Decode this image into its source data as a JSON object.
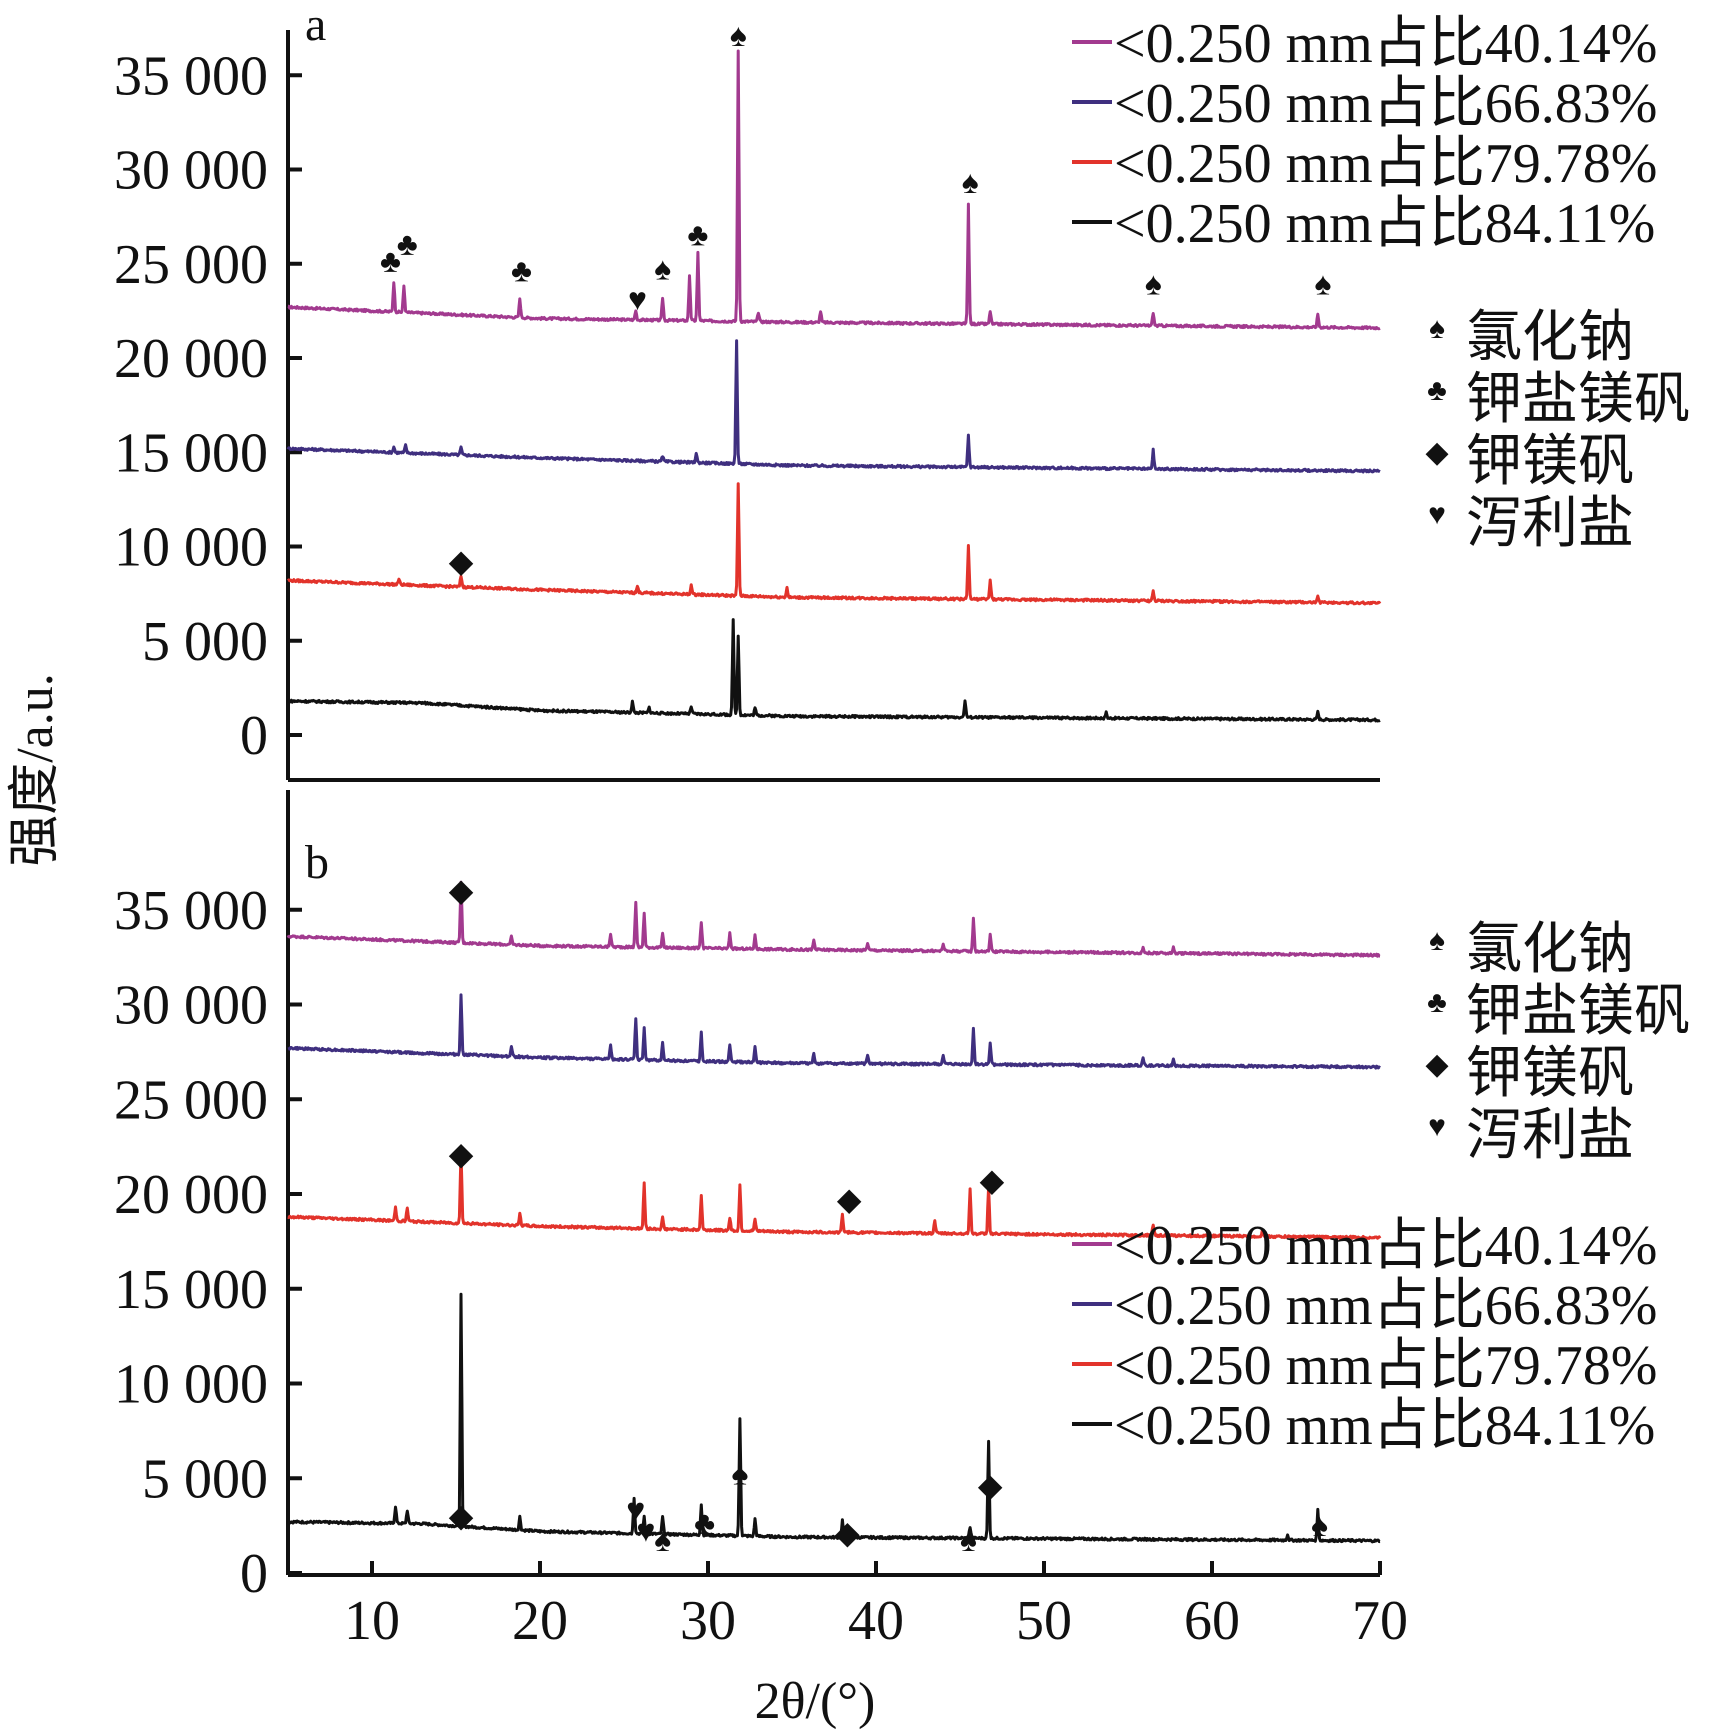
{
  "y_axis_title": "强度/a.u.",
  "x_axis_title": "2θ/(°)",
  "x_ticks": [
    "10",
    "20",
    "30",
    "40",
    "50",
    "60",
    "70"
  ],
  "y_ticks": [
    "0",
    "5 000",
    "10 000",
    "15 000",
    "20 000",
    "25 000",
    "30 000",
    "35 000"
  ],
  "marker_legend": [
    {
      "symbol": "♠",
      "label": "氯化钠"
    },
    {
      "symbol": "♣",
      "label": "钾盐镁矾"
    },
    {
      "symbol": "◆",
      "label": "钾镁矾"
    },
    {
      "symbol": "♥",
      "label": "泻利盐"
    }
  ],
  "colors": {
    "series_40": "#a23a8f",
    "series_66": "#3f2f7f",
    "series_79": "#e2332b",
    "series_84": "#111111",
    "axis": "#111111"
  },
  "chart_data": [
    {
      "type": "line",
      "panel_label": "a",
      "xlim": [
        5,
        70
      ],
      "ylim": [
        -2200,
        38500
      ],
      "xlabel": "2θ/(°)",
      "ylabel": "强度/a.u.",
      "legend_position": "top-right",
      "series": [
        {
          "name": "<0.250 mm占比40.14%",
          "color": "#a23a8f",
          "baseline": [
            [
              5,
              22700
            ],
            [
              20,
              22100
            ],
            [
              35,
              21900
            ],
            [
              70,
              21600
            ]
          ],
          "peaks": [
            [
              11.3,
              1600
            ],
            [
              11.9,
              1400
            ],
            [
              18.8,
              1000
            ],
            [
              25.7,
              500
            ],
            [
              27.3,
              1200
            ],
            [
              28.9,
              2400
            ],
            [
              29.4,
              3600
            ],
            [
              31.8,
              14300
            ],
            [
              33,
              500
            ],
            [
              36.7,
              600
            ],
            [
              45.5,
              6300
            ],
            [
              46.8,
              700
            ],
            [
              56.5,
              700
            ],
            [
              66.3,
              700
            ]
          ]
        },
        {
          "name": "<0.250 mm占比66.83%",
          "color": "#3f2f7f",
          "baseline": [
            [
              5,
              15200
            ],
            [
              20,
              14700
            ],
            [
              35,
              14300
            ],
            [
              70,
              14000
            ]
          ],
          "peaks": [
            [
              11.3,
              300
            ],
            [
              12,
              400
            ],
            [
              15.3,
              400
            ],
            [
              27.3,
              300
            ],
            [
              29.3,
              500
            ],
            [
              31.7,
              6500
            ],
            [
              45.5,
              1700
            ],
            [
              56.5,
              1000
            ]
          ]
        },
        {
          "name": "<0.250 mm占比79.78%",
          "color": "#e2332b",
          "baseline": [
            [
              5,
              8200
            ],
            [
              20,
              7700
            ],
            [
              35,
              7300
            ],
            [
              70,
              7000
            ]
          ],
          "peaks": [
            [
              11.6,
              300
            ],
            [
              15.3,
              600
            ],
            [
              25.8,
              400
            ],
            [
              29,
              500
            ],
            [
              31.8,
              5900
            ],
            [
              34.7,
              500
            ],
            [
              45.5,
              2900
            ],
            [
              46.8,
              1000
            ],
            [
              56.5,
              500
            ],
            [
              66.3,
              400
            ]
          ]
        },
        {
          "name": "<0.250 mm占比84.11%",
          "color": "#111111",
          "baseline": [
            [
              5,
              1800
            ],
            [
              13,
              1700
            ],
            [
              20,
              1300
            ],
            [
              35,
              1000
            ],
            [
              70,
              800
            ]
          ],
          "peaks": [
            [
              25.5,
              600
            ],
            [
              26.5,
              300
            ],
            [
              29,
              400
            ],
            [
              31.5,
              5000
            ],
            [
              31.8,
              4200
            ],
            [
              32.8,
              400
            ],
            [
              45.3,
              900
            ],
            [
              53.7,
              300
            ],
            [
              66.3,
              400
            ]
          ]
        }
      ],
      "annotations": [
        {
          "symbol": "♣",
          "x": 11.1,
          "y": 25300
        },
        {
          "symbol": "♣",
          "x": 12.1,
          "y": 26200
        },
        {
          "symbol": "♣",
          "x": 18.9,
          "y": 24800
        },
        {
          "symbol": "♥",
          "x": 25.8,
          "y": 23300
        },
        {
          "symbol": "♠",
          "x": 27.3,
          "y": 24900
        },
        {
          "symbol": "♣",
          "x": 29.4,
          "y": 26700
        },
        {
          "symbol": "♠",
          "x": 31.8,
          "y": 37300
        },
        {
          "symbol": "♠",
          "x": 45.6,
          "y": 29500
        },
        {
          "symbol": "♠",
          "x": 56.5,
          "y": 24100
        },
        {
          "symbol": "♠",
          "x": 66.6,
          "y": 24100
        },
        {
          "symbol": "◆",
          "x": 15.3,
          "y": 9400
        }
      ]
    },
    {
      "type": "line",
      "panel_label": "b",
      "xlim": [
        5,
        70
      ],
      "ylim": [
        0,
        40000
      ],
      "xlabel": "2θ/(°)",
      "ylabel": "强度/a.u.",
      "legend_position": "bottom-right",
      "series": [
        {
          "name": "<0.250 mm占比40.14%",
          "color": "#a23a8f",
          "baseline": [
            [
              5,
              33600
            ],
            [
              20,
              33100
            ],
            [
              35,
              32900
            ],
            [
              70,
              32600
            ]
          ],
          "peaks": [
            [
              15.3,
              3200
            ],
            [
              18.3,
              400
            ],
            [
              24.2,
              700
            ],
            [
              25.7,
              2400
            ],
            [
              26.2,
              1800
            ],
            [
              27.3,
              700
            ],
            [
              29.6,
              1400
            ],
            [
              31.3,
              800
            ],
            [
              32.8,
              700
            ],
            [
              36.3,
              500
            ],
            [
              39.5,
              400
            ],
            [
              44,
              400
            ],
            [
              45.8,
              1700
            ],
            [
              46.8,
              900
            ],
            [
              55.9,
              300
            ],
            [
              57.7,
              300
            ]
          ]
        },
        {
          "name": "<0.250 mm占比66.83%",
          "color": "#3f2f7f",
          "baseline": [
            [
              5,
              27700
            ],
            [
              20,
              27200
            ],
            [
              35,
              26900
            ],
            [
              70,
              26700
            ]
          ],
          "peaks": [
            [
              15.3,
              3100
            ],
            [
              18.3,
              500
            ],
            [
              24.2,
              700
            ],
            [
              25.7,
              2200
            ],
            [
              26.2,
              1700
            ],
            [
              27.3,
              900
            ],
            [
              29.6,
              1500
            ],
            [
              31.3,
              900
            ],
            [
              32.8,
              800
            ],
            [
              36.3,
              500
            ],
            [
              39.5,
              500
            ],
            [
              44,
              500
            ],
            [
              45.8,
              1900
            ],
            [
              46.8,
              1100
            ],
            [
              55.9,
              400
            ],
            [
              57.7,
              400
            ]
          ]
        },
        {
          "name": "<0.250 mm占比79.78%",
          "color": "#e2332b",
          "baseline": [
            [
              5,
              18800
            ],
            [
              20,
              18300
            ],
            [
              35,
              18000
            ],
            [
              70,
              17700
            ]
          ],
          "peaks": [
            [
              11.4,
              700
            ],
            [
              12.1,
              700
            ],
            [
              15.3,
              3800
            ],
            [
              18.8,
              600
            ],
            [
              26.2,
              2400
            ],
            [
              27.3,
              600
            ],
            [
              29.6,
              1800
            ],
            [
              31.3,
              700
            ],
            [
              31.9,
              2400
            ],
            [
              32.8,
              600
            ],
            [
              38,
              1000
            ],
            [
              43.5,
              700
            ],
            [
              45.6,
              2400
            ],
            [
              46.7,
              2500
            ],
            [
              56.5,
              600
            ],
            [
              63,
              300
            ]
          ]
        },
        {
          "name": "<0.250 mm占比84.11%",
          "color": "#111111",
          "baseline": [
            [
              5,
              2700
            ],
            [
              13,
              2600
            ],
            [
              20,
              2200
            ],
            [
              35,
              1900
            ],
            [
              70,
              1700
            ]
          ],
          "peaks": [
            [
              11.4,
              900
            ],
            [
              12.1,
              700
            ],
            [
              15.3,
              12200
            ],
            [
              18.8,
              700
            ],
            [
              25.6,
              1900
            ],
            [
              26.2,
              900
            ],
            [
              27.3,
              900
            ],
            [
              29.6,
              1600
            ],
            [
              31.9,
              6200
            ],
            [
              32.8,
              900
            ],
            [
              38,
              900
            ],
            [
              45.6,
              600
            ],
            [
              46.7,
              5100
            ],
            [
              64.5,
              300
            ],
            [
              66.3,
              1600
            ]
          ]
        }
      ],
      "annotations": [
        {
          "symbol": "◆",
          "x": 15.3,
          "y": 36200
        },
        {
          "symbol": "◆",
          "x": 15.3,
          "y": 22300
        },
        {
          "symbol": "◆",
          "x": 38.4,
          "y": 19900
        },
        {
          "symbol": "◆",
          "x": 46.9,
          "y": 20900
        },
        {
          "symbol": "◆",
          "x": 15.3,
          "y": 3200
        },
        {
          "symbol": "♥",
          "x": 25.7,
          "y": 3500
        },
        {
          "symbol": "♥",
          "x": 26.3,
          "y": 2400
        },
        {
          "symbol": "♠",
          "x": 27.3,
          "y": 1900
        },
        {
          "symbol": "♣",
          "x": 29.8,
          "y": 2800
        },
        {
          "symbol": "♠",
          "x": 31.9,
          "y": 5400
        },
        {
          "symbol": "◆",
          "x": 38.3,
          "y": 2300
        },
        {
          "symbol": "♠",
          "x": 45.5,
          "y": 1900
        },
        {
          "symbol": "◆",
          "x": 46.8,
          "y": 4800
        },
        {
          "symbol": "♠",
          "x": 66.4,
          "y": 2700
        }
      ]
    }
  ]
}
